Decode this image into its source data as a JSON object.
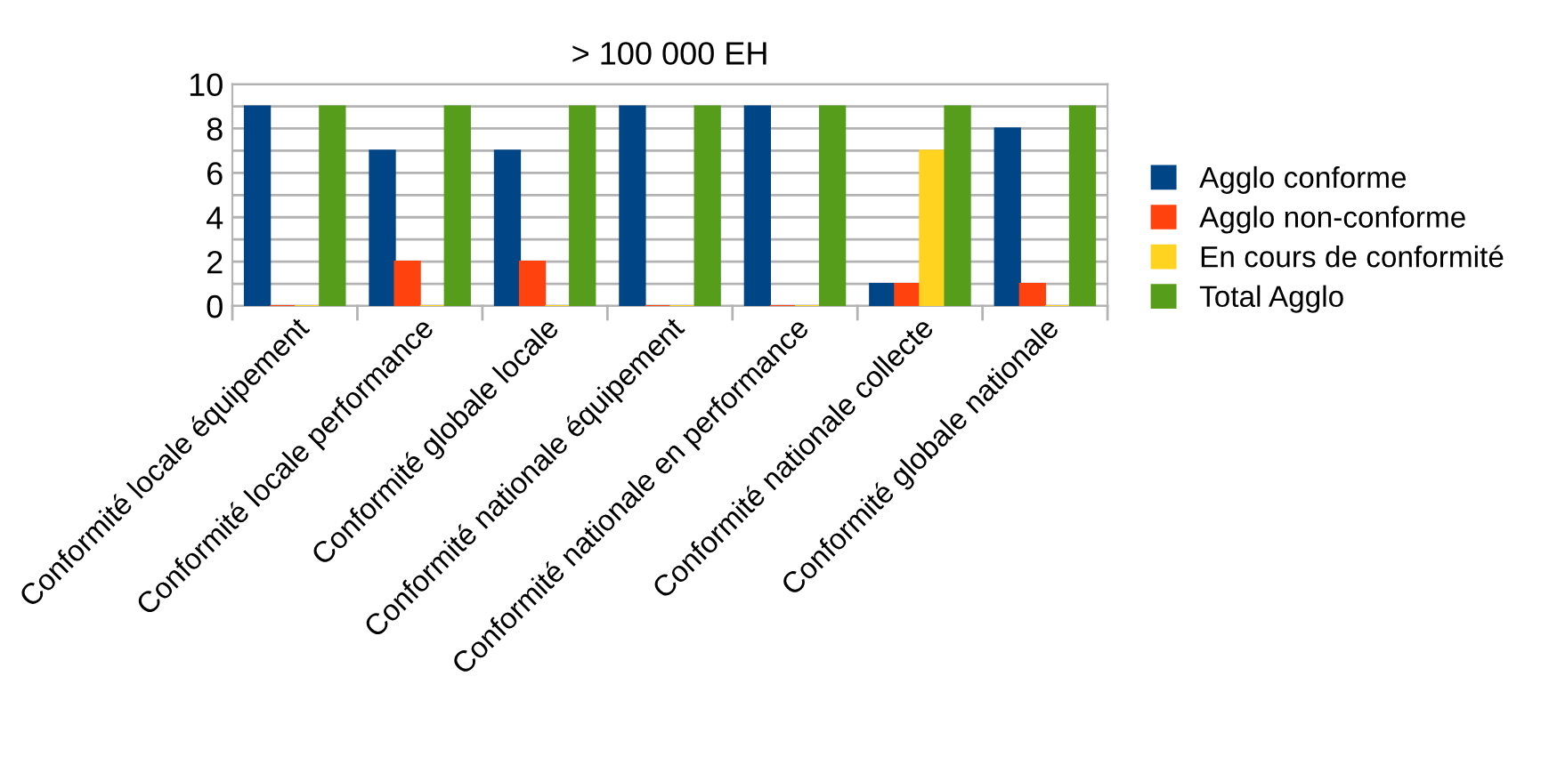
{
  "chart_data": {
    "type": "bar",
    "title": "> 100 000 EH",
    "categories": [
      "Conformité locale équipement",
      "Conformité locale performance",
      "Conformité globale locale",
      "Conformité nationale équipement",
      "Conformité nationale en performance",
      "Conformité nationale collecte",
      "Conformité globale nationale"
    ],
    "series": [
      {
        "name": "Agglo conforme",
        "color": "#004586",
        "values": [
          9,
          7,
          7,
          9,
          9,
          1,
          8
        ]
      },
      {
        "name": "Agglo non-conforme",
        "color": "#ff420e",
        "values": [
          0,
          2,
          2,
          0,
          0,
          1,
          1
        ]
      },
      {
        "name": "En cours de conformité",
        "color": "#ffd320",
        "values": [
          0,
          0,
          0,
          0,
          0,
          7,
          0
        ]
      },
      {
        "name": "Total Agglo",
        "color": "#579d1c",
        "values": [
          9,
          9,
          9,
          9,
          9,
          9,
          9
        ]
      }
    ],
    "ylim": [
      0,
      10
    ],
    "yticks": [
      0,
      {
        "value": 1,
        "label": null
      },
      2,
      {
        "value": 3,
        "label": null
      },
      4,
      {
        "value": 5,
        "label": null
      },
      6,
      {
        "value": 7,
        "label": null
      },
      8,
      {
        "value": 9,
        "label": null
      },
      10
    ],
    "grid": "y",
    "legend": "right"
  }
}
